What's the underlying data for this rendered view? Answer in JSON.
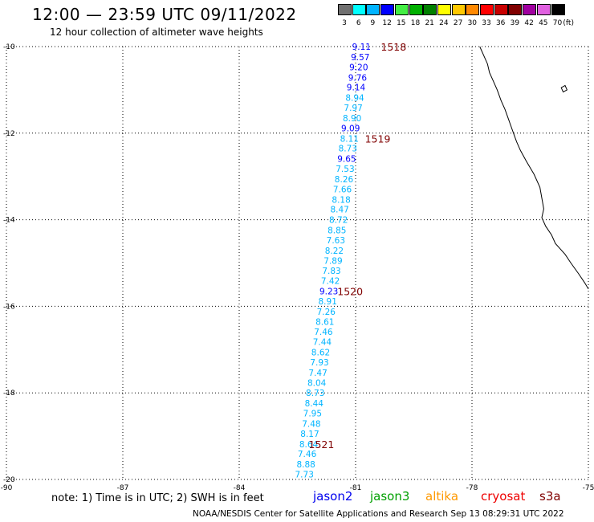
{
  "title": "12:00 — 23:59 UTC 09/11/2022",
  "subtitle": "12 hour collection of altimeter wave heights",
  "colorbar": {
    "unit": "(ft)",
    "bins": [
      {
        "label": "3",
        "color": "#707070"
      },
      {
        "label": "6",
        "color": "#00ffff"
      },
      {
        "label": "9",
        "color": "#00b4ff"
      },
      {
        "label": "12",
        "color": "#0000ff"
      },
      {
        "label": "15",
        "color": "#44ee44"
      },
      {
        "label": "18",
        "color": "#00b000"
      },
      {
        "label": "21",
        "color": "#008000"
      },
      {
        "label": "24",
        "color": "#ffff00"
      },
      {
        "label": "27",
        "color": "#ffc800"
      },
      {
        "label": "30",
        "color": "#ff8800"
      },
      {
        "label": "33",
        "color": "#ff0000"
      },
      {
        "label": "36",
        "color": "#c80000"
      },
      {
        "label": "39",
        "color": "#800000"
      },
      {
        "label": "42",
        "color": "#a000a0"
      },
      {
        "label": "45",
        "color": "#e060e0"
      },
      {
        "label": "70",
        "color": "#000000"
      }
    ]
  },
  "map": {
    "lon_ticks": [
      "-90",
      "-87",
      "-84",
      "-81",
      "-78",
      "-75"
    ],
    "lat_ticks": [
      "-10",
      "-12",
      "-14",
      "-16",
      "-18",
      "-20"
    ],
    "lon_range": [
      -90,
      -75
    ],
    "lat_range": [
      -20,
      -10
    ],
    "grid": "dotted",
    "coastline_color": "#000000",
    "time_label_color": "#800000",
    "track_points": [
      {
        "lon": -80.85,
        "lat": -10.0,
        "value": "9.11"
      },
      {
        "lon": -80.88,
        "lat": -10.24,
        "value": "9.57"
      },
      {
        "lon": -80.92,
        "lat": -10.47,
        "value": "9.20"
      },
      {
        "lon": -80.95,
        "lat": -10.71,
        "value": "9.76"
      },
      {
        "lon": -80.99,
        "lat": -10.94,
        "value": "9.14"
      },
      {
        "lon": -81.02,
        "lat": -11.18,
        "value": "8.94"
      },
      {
        "lon": -81.06,
        "lat": -11.41,
        "value": "7.97"
      },
      {
        "lon": -81.09,
        "lat": -11.65,
        "value": "8.90"
      },
      {
        "lon": -81.13,
        "lat": -11.88,
        "value": "9.09"
      },
      {
        "lon": -81.16,
        "lat": -12.12,
        "value": "8.11"
      },
      {
        "lon": -81.2,
        "lat": -12.35,
        "value": "8.73"
      },
      {
        "lon": -81.23,
        "lat": -12.59,
        "value": "9.65"
      },
      {
        "lon": -81.27,
        "lat": -12.82,
        "value": "7.53"
      },
      {
        "lon": -81.3,
        "lat": -13.06,
        "value": "8.26"
      },
      {
        "lon": -81.34,
        "lat": -13.29,
        "value": "7.66"
      },
      {
        "lon": -81.37,
        "lat": -13.53,
        "value": "8.18"
      },
      {
        "lon": -81.41,
        "lat": -13.76,
        "value": "8.47"
      },
      {
        "lon": -81.44,
        "lat": -14.0,
        "value": "8.72"
      },
      {
        "lon": -81.48,
        "lat": -14.24,
        "value": "8.85"
      },
      {
        "lon": -81.51,
        "lat": -14.47,
        "value": "7.63"
      },
      {
        "lon": -81.55,
        "lat": -14.71,
        "value": "8.22"
      },
      {
        "lon": -81.58,
        "lat": -14.94,
        "value": "7.89"
      },
      {
        "lon": -81.62,
        "lat": -15.18,
        "value": "7.83"
      },
      {
        "lon": -81.65,
        "lat": -15.41,
        "value": "7.42"
      },
      {
        "lon": -81.69,
        "lat": -15.65,
        "value": "9.23"
      },
      {
        "lon": -81.72,
        "lat": -15.88,
        "value": "8.91"
      },
      {
        "lon": -81.76,
        "lat": -16.12,
        "value": "7.26"
      },
      {
        "lon": -81.79,
        "lat": -16.35,
        "value": "8.61"
      },
      {
        "lon": -81.83,
        "lat": -16.59,
        "value": "7.46"
      },
      {
        "lon": -81.86,
        "lat": -16.82,
        "value": "7.44"
      },
      {
        "lon": -81.9,
        "lat": -17.06,
        "value": "8.62"
      },
      {
        "lon": -81.93,
        "lat": -17.29,
        "value": "7.93"
      },
      {
        "lon": -81.97,
        "lat": -17.53,
        "value": "7.47"
      },
      {
        "lon": -82.0,
        "lat": -17.76,
        "value": "8.04"
      },
      {
        "lon": -82.04,
        "lat": -18.0,
        "value": "8.73"
      },
      {
        "lon": -82.07,
        "lat": -18.24,
        "value": "8.44"
      },
      {
        "lon": -82.11,
        "lat": -18.47,
        "value": "7.95"
      },
      {
        "lon": -82.14,
        "lat": -18.71,
        "value": "7.48"
      },
      {
        "lon": -82.18,
        "lat": -18.94,
        "value": "8.17"
      },
      {
        "lon": -82.21,
        "lat": -19.18,
        "value": "8.64"
      },
      {
        "lon": -82.25,
        "lat": -19.41,
        "value": "7.46"
      },
      {
        "lon": -82.28,
        "lat": -19.65,
        "value": "8.88"
      },
      {
        "lon": -82.32,
        "lat": -19.88,
        "value": "7.73"
      }
    ],
    "time_labels": [
      {
        "lon": -80.35,
        "lat": -10.0,
        "text": "1518"
      },
      {
        "lon": -80.76,
        "lat": -12.12,
        "text": "1519"
      },
      {
        "lon": -81.47,
        "lat": -15.65,
        "text": "1520"
      },
      {
        "lon": -82.21,
        "lat": -19.18,
        "text": "1521"
      }
    ],
    "coastline": [
      [
        -77.8,
        -10.0
      ],
      [
        -77.7,
        -10.2
      ],
      [
        -77.6,
        -10.4
      ],
      [
        -77.55,
        -10.6
      ],
      [
        -77.45,
        -10.8
      ],
      [
        -77.35,
        -11.0
      ],
      [
        -77.25,
        -11.25
      ],
      [
        -77.15,
        -11.45
      ],
      [
        -77.05,
        -11.7
      ],
      [
        -76.95,
        -11.95
      ],
      [
        -76.85,
        -12.2
      ],
      [
        -76.75,
        -12.4
      ],
      [
        -76.6,
        -12.65
      ],
      [
        -76.4,
        -12.95
      ],
      [
        -76.25,
        -13.25
      ],
      [
        -76.2,
        -13.5
      ],
      [
        -76.15,
        -13.75
      ],
      [
        -76.2,
        -13.95
      ],
      [
        -76.1,
        -14.15
      ],
      [
        -75.95,
        -14.35
      ],
      [
        -75.85,
        -14.55
      ],
      [
        -75.6,
        -14.8
      ],
      [
        -75.45,
        -15.0
      ],
      [
        -75.25,
        -15.25
      ],
      [
        -75.1,
        -15.45
      ],
      [
        -75.0,
        -15.6
      ]
    ],
    "island": [
      [
        -75.7,
        -10.95
      ],
      [
        -75.6,
        -10.9
      ],
      [
        -75.55,
        -11.0
      ],
      [
        -75.65,
        -11.05
      ]
    ]
  },
  "footer": {
    "note": "note:  1) Time is in UTC;  2) SWH is in feet",
    "missions": [
      {
        "name": "jason2",
        "color": "#0000ee"
      },
      {
        "name": "jason3",
        "color": "#00a000"
      },
      {
        "name": "altika",
        "color": "#ff9900"
      },
      {
        "name": "cryosat",
        "color": "#ee0000"
      },
      {
        "name": "s3a",
        "color": "#800000"
      }
    ],
    "credit": "NOAA/NESDIS Center for Satellite Applications and Research    Sep 13 08:29:31 UTC 2022"
  }
}
